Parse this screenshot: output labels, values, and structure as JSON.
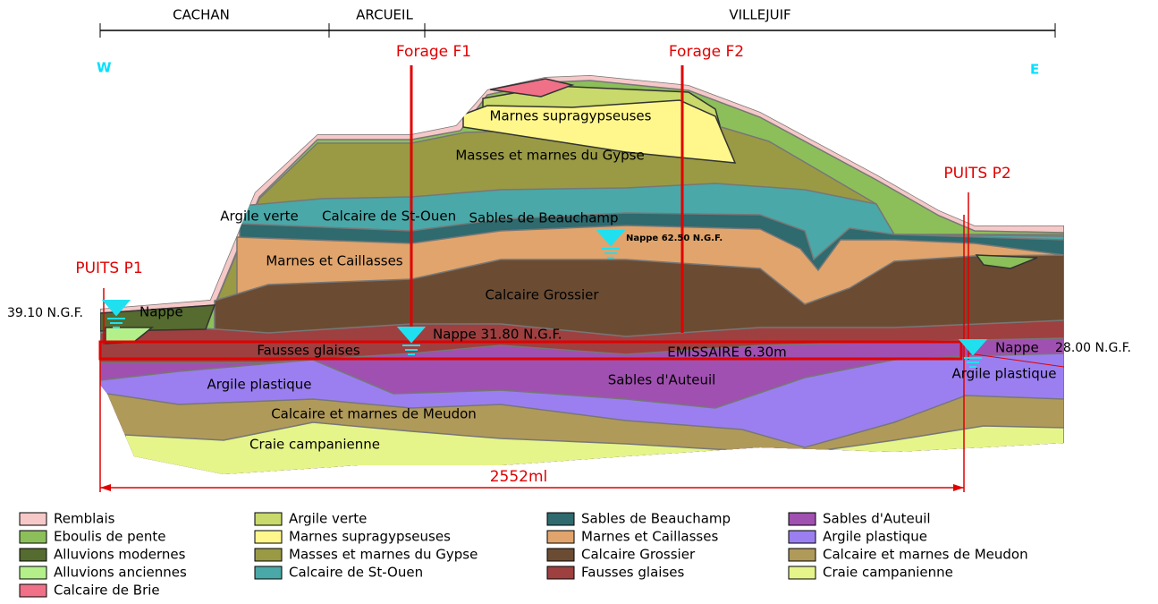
{
  "header": {
    "communes": [
      "CACHAN",
      "ARCUEIL",
      "VILLEJUIF"
    ],
    "west": "W",
    "east": "E"
  },
  "boreholes": [
    "Forage F1",
    "Forage F2"
  ],
  "wells": [
    {
      "name": "PUITS P1",
      "level": "39.10 N.G.F.",
      "water": "Nappe"
    },
    {
      "name": "PUITS P2",
      "water": "Nappe",
      "level": "28.00 N.G.F."
    }
  ],
  "water_tables": [
    "Nappe 31.80 N.G.F.",
    "Nappe 62.50 N.G.F."
  ],
  "tunnel": "EMISSAIRE 6.30m",
  "length": "2552ml",
  "section_labels": [
    "Argile verte",
    "Marnes supragypseuses",
    "Masses et marnes du Gypse",
    "Calcaire de St-Ouen",
    "Sables de Beauchamp",
    "Marnes et Caillasses",
    "Calcaire Grossier",
    "Fausses glaises",
    "Sables d'Auteuil",
    "Argile plastique",
    "Argile plastique",
    "Calcaire et marnes de Meudon",
    "Craie campanienne"
  ],
  "legend": [
    [
      {
        "label": "Remblais",
        "color": "#f6c8c8"
      },
      {
        "label": "Eboulis de pente",
        "color": "#8cbf5a"
      },
      {
        "label": "Alluvions modernes",
        "color": "#556b2f"
      },
      {
        "label": "Alluvions anciennes",
        "color": "#b4f08a"
      },
      {
        "label": "Calcaire de Brie",
        "color": "#f07088"
      }
    ],
    [
      {
        "label": "Argile verte",
        "color": "#c9d96b"
      },
      {
        "label": "Marnes supragypseuses",
        "color": "#fff78c"
      },
      {
        "label": "Masses et marnes du Gypse",
        "color": "#9a9a45"
      },
      {
        "label": "Calcaire de St-Ouen",
        "color": "#4aa8a8"
      }
    ],
    [
      {
        "label": "Sables de Beauchamp",
        "color": "#2e6a6e"
      },
      {
        "label": "Marnes et Caillasses",
        "color": "#e0a46c"
      },
      {
        "label": "Calcaire Grossier",
        "color": "#6b4c33"
      },
      {
        "label": "Fausses glaises",
        "color": "#9e4040"
      }
    ],
    [
      {
        "label": "Sables d'Auteuil",
        "color": "#a050b0"
      },
      {
        "label": "Argile plastique",
        "color": "#9b7ff0"
      },
      {
        "label": "Calcaire et marnes de Meudon",
        "color": "#b09a5a"
      },
      {
        "label": "Craie campanienne",
        "color": "#e6f58a"
      }
    ]
  ]
}
